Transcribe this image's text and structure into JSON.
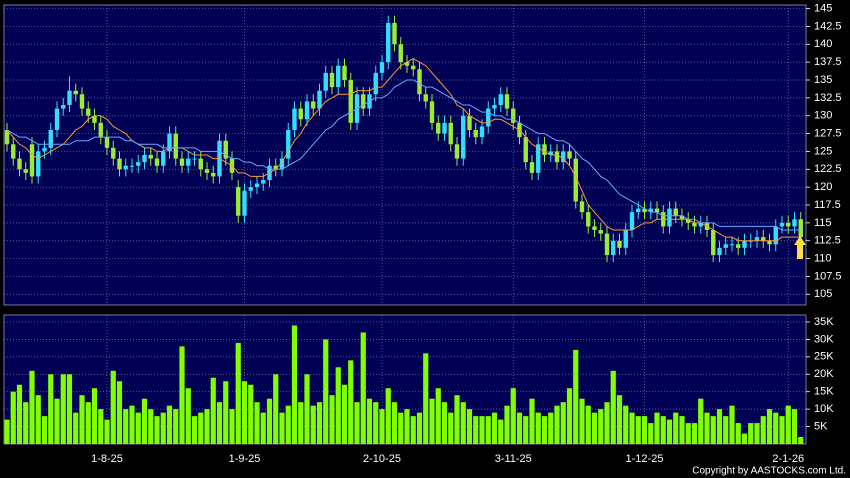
{
  "chart_data": [
    {
      "type": "candlestick",
      "up_color": "#33ddff",
      "down_color": "#99ee33",
      "open": [
        128,
        126,
        124,
        122.5,
        126,
        121.5,
        125,
        125.5,
        128,
        131,
        131.5,
        133.5,
        133,
        131,
        130,
        129,
        127,
        125.5,
        124,
        122.5,
        123,
        123,
        123.5,
        124.5,
        124,
        123,
        125,
        127.5,
        124,
        123,
        124,
        124,
        122.5,
        122,
        121.5,
        126.5,
        124,
        120,
        116,
        119.5,
        120,
        120.5,
        121,
        123,
        122.5,
        124,
        128,
        131,
        129.5,
        132,
        131,
        133.5,
        136,
        134,
        137,
        135,
        129,
        133,
        131,
        133,
        136,
        137.5,
        143,
        140,
        137.5,
        137,
        136.5,
        133,
        132,
        129,
        127.5,
        129,
        126,
        124,
        130,
        128,
        127,
        128.5,
        131,
        131.5,
        133,
        131,
        129,
        127,
        123.5,
        122,
        126,
        124.5,
        125,
        123.5,
        125,
        124,
        118,
        116.5,
        114.5,
        114,
        113.5,
        110.5,
        112.5,
        111.5,
        114,
        116.5,
        117,
        116.5,
        117,
        116.5,
        114.5,
        117,
        116,
        115.5,
        115,
        114.5,
        115,
        114,
        110.5,
        111.5,
        112,
        112,
        111.5,
        112.5,
        112.5,
        113,
        112.5,
        112,
        114.5,
        115,
        114.5,
        115.5
      ],
      "high": [
        129,
        127,
        125,
        123.5,
        127,
        126,
        126.5,
        129,
        132,
        132.5,
        135.5,
        134.5,
        134,
        132,
        131,
        130,
        128,
        126.5,
        125,
        124,
        124,
        124.5,
        125.5,
        125.5,
        125,
        126,
        128.5,
        128.5,
        125,
        125,
        125,
        125,
        123.5,
        123,
        127.5,
        127.5,
        125,
        121,
        120.5,
        121,
        121.5,
        122,
        124,
        124,
        125,
        129,
        132,
        132,
        133,
        133,
        134.5,
        137,
        137,
        138,
        138,
        136,
        134,
        134,
        134,
        137,
        138.5,
        144,
        144,
        141,
        138.5,
        138,
        137.5,
        134,
        133,
        130,
        130,
        130,
        127,
        131,
        131,
        129,
        129.5,
        132,
        132.5,
        134,
        134,
        132,
        130,
        128,
        124.5,
        127,
        127,
        126,
        126,
        126,
        126,
        125,
        119,
        117.5,
        115.5,
        115,
        114.5,
        113.5,
        113.5,
        115,
        117.5,
        118,
        118,
        118,
        118,
        117.5,
        118,
        118,
        117,
        116.5,
        116,
        116,
        116,
        115,
        112.5,
        113,
        113,
        113,
        113.5,
        113.5,
        114,
        114,
        113.5,
        115.5,
        116,
        116,
        116.5,
        116.5
      ],
      "low": [
        125,
        123,
        121.5,
        121,
        120.5,
        120.5,
        124,
        124.5,
        127,
        130,
        130.5,
        132,
        130,
        129,
        128,
        126,
        124.5,
        123,
        121.5,
        121.5,
        122,
        122,
        122.5,
        123,
        122,
        122,
        124,
        123,
        122,
        122,
        123,
        121.5,
        121,
        120.5,
        120.5,
        123,
        121,
        115,
        115,
        118.5,
        119,
        119.5,
        120,
        121.5,
        121.5,
        123,
        127,
        128.5,
        128.5,
        130,
        130,
        132.5,
        133,
        133,
        134,
        128,
        128,
        130,
        130,
        132,
        135,
        136.5,
        139,
        136.5,
        136,
        135.5,
        132,
        131,
        128,
        126.5,
        126.5,
        125,
        123,
        123,
        127,
        126,
        126,
        127.5,
        130,
        130.5,
        130,
        128,
        126,
        122.5,
        121,
        121,
        123.5,
        123.5,
        122.5,
        122.5,
        123,
        117,
        115.5,
        113.5,
        113,
        112.5,
        109.5,
        109.5,
        110.5,
        110.5,
        113,
        115.5,
        115.5,
        115.5,
        115.5,
        113.5,
        113.5,
        115,
        114.5,
        114,
        113.5,
        113.5,
        113,
        109.5,
        109.5,
        110.5,
        111,
        110.5,
        110.5,
        111.5,
        111.5,
        111.5,
        111,
        111,
        113.5,
        113.5,
        113.5,
        112
      ],
      "close": [
        126,
        124,
        122.5,
        122,
        121.5,
        125,
        125.5,
        128,
        131,
        131.5,
        133.5,
        133,
        131,
        130,
        129,
        127,
        125.5,
        124,
        122.5,
        123,
        123,
        123.5,
        124.5,
        124,
        123,
        125,
        127.5,
        124,
        123,
        124,
        124,
        122.5,
        122,
        121.5,
        126.5,
        124,
        122,
        116,
        119.5,
        120,
        120.5,
        121,
        123,
        122.5,
        124,
        128,
        131,
        129.5,
        132,
        131,
        133.5,
        136,
        134,
        137,
        135,
        129,
        133,
        131,
        133,
        136,
        137.5,
        143,
        140,
        137.5,
        137,
        136.5,
        133,
        132,
        129,
        127.5,
        129,
        126,
        124,
        130,
        128,
        127,
        128.5,
        131,
        131.5,
        133,
        131,
        129,
        127,
        123.5,
        122,
        126,
        124.5,
        125,
        123.5,
        125,
        124,
        118,
        116.5,
        114.5,
        114,
        113.5,
        110.5,
        112.5,
        111.5,
        114,
        116.5,
        117,
        116.5,
        117,
        116.5,
        114.5,
        117,
        116,
        115.5,
        115,
        114.5,
        115,
        114,
        110.5,
        111.5,
        112,
        112,
        111.5,
        112.5,
        112.5,
        113,
        112.5,
        112,
        114.5,
        115,
        114.5,
        115.5,
        113
      ],
      "series": [
        {
          "color": "#ff9933",
          "values": [
            128,
            127,
            126,
            125.5,
            124.5,
            124,
            124.5,
            125,
            125.5,
            126,
            127,
            128,
            128.5,
            129.5,
            130,
            130,
            129.5,
            128.5,
            128,
            127.5,
            126.5,
            126,
            125.5,
            125.5,
            125,
            125,
            125.5,
            125.5,
            125.5,
            125,
            124.5,
            124.5,
            124.5,
            124,
            124,
            123.5,
            123,
            122,
            122,
            121.5,
            121.5,
            121.5,
            122,
            122.5,
            123.5,
            125,
            126.5,
            127.5,
            129,
            130,
            131,
            132,
            132.5,
            133,
            133,
            133,
            133.5,
            133.5,
            133.5,
            134,
            134,
            135,
            136,
            137,
            137.5,
            138,
            137.5,
            137,
            136,
            135,
            134,
            133,
            131.5,
            131,
            130,
            129.5,
            129,
            129,
            129.5,
            129.5,
            129,
            128.5,
            128,
            127,
            126,
            125.5,
            125,
            124.5,
            124.5,
            124,
            123,
            121.5,
            119.5,
            117.5,
            116.5,
            115.5,
            114.5,
            114,
            114,
            114,
            114,
            114.5,
            115,
            115,
            115.5,
            115.5,
            115.5,
            115.5,
            115.5,
            115.5,
            115,
            115,
            114.5,
            114,
            113.5,
            113,
            113,
            112.5,
            112.5,
            112.5,
            112.5,
            112.5,
            112.5,
            112.5,
            113,
            113,
            113,
            113
          ]
        },
        {
          "color": "#66aaff",
          "values": [
            128,
            127.5,
            127,
            127,
            126.5,
            126,
            126,
            126,
            126,
            126,
            126,
            126.5,
            126.5,
            126.5,
            127,
            127,
            127,
            127,
            127,
            126.5,
            126.5,
            126,
            126,
            126,
            126,
            125.5,
            125.5,
            125.5,
            125.5,
            125.5,
            125.5,
            125,
            125,
            125,
            125,
            124.5,
            124,
            124,
            123.5,
            123.5,
            123,
            123,
            122.5,
            122.5,
            122.5,
            123,
            123.5,
            124,
            125,
            126,
            127,
            128,
            128.5,
            129.5,
            130,
            130.5,
            131,
            131.5,
            132,
            132.5,
            132.5,
            133,
            134,
            134.5,
            135,
            135,
            134.5,
            134,
            134,
            133.5,
            133,
            132.5,
            132,
            131.5,
            131.5,
            131,
            130.5,
            130.5,
            130,
            130,
            129.5,
            129.5,
            129,
            128.5,
            128,
            127.5,
            127.5,
            127,
            126.5,
            126.5,
            126,
            125,
            124,
            123.5,
            122.5,
            121.5,
            121,
            120,
            119,
            118.5,
            118,
            117.5,
            117,
            116.5,
            116.5,
            116,
            116,
            116,
            116,
            115.5,
            115.5,
            115,
            115,
            115,
            114.5,
            114.5,
            114.5,
            114.5,
            114.5,
            114.5,
            114.5,
            114.5,
            114.5,
            114.5,
            114,
            114,
            114,
            114
          ]
        }
      ],
      "ylim": [
        103.5,
        145.5
      ],
      "yticks": [
        105,
        107.5,
        110,
        112.5,
        115,
        117.5,
        120,
        122.5,
        125,
        127.5,
        130,
        132.5,
        135,
        137.5,
        140,
        142.5,
        145
      ],
      "grid": true
    },
    {
      "type": "bar",
      "color": "#80ff00",
      "categories": [
        null,
        null,
        null,
        null,
        null,
        null,
        null,
        null,
        null,
        null,
        null,
        null,
        null,
        null,
        null,
        null,
        "1-8-25",
        null,
        null,
        null,
        null,
        null,
        null,
        null,
        null,
        null,
        null,
        null,
        null,
        null,
        null,
        null,
        null,
        null,
        null,
        null,
        null,
        null,
        "1-9-25",
        null,
        null,
        null,
        null,
        null,
        null,
        null,
        null,
        null,
        null,
        null,
        null,
        null,
        null,
        null,
        null,
        null,
        null,
        null,
        null,
        null,
        "2-10-25",
        null,
        null,
        null,
        null,
        null,
        null,
        null,
        null,
        null,
        null,
        null,
        null,
        null,
        null,
        null,
        null,
        null,
        null,
        null,
        null,
        "3-11-25",
        null,
        null,
        null,
        null,
        null,
        null,
        null,
        null,
        null,
        null,
        null,
        null,
        null,
        null,
        null,
        null,
        null,
        null,
        null,
        null,
        "1-12-25",
        null,
        null,
        null,
        null,
        null,
        null,
        null,
        null,
        null,
        null,
        null,
        null,
        null,
        null,
        null,
        null,
        null,
        null,
        null,
        null,
        null,
        null,
        "2-1-26",
        null,
        null
      ],
      "values": [
        7000,
        15000,
        17000,
        12000,
        21000,
        14000,
        8000,
        20000,
        13000,
        20000,
        20000,
        9000,
        14000,
        12000,
        16000,
        10000,
        7000,
        21000,
        18000,
        10000,
        11000,
        9000,
        13000,
        10000,
        8000,
        9000,
        11000,
        10000,
        28000,
        16000,
        8000,
        9000,
        10000,
        19000,
        12000,
        18000,
        10000,
        29000,
        18000,
        17000,
        12000,
        9000,
        13000,
        20000,
        9000,
        11000,
        34000,
        12000,
        20000,
        11000,
        12000,
        30000,
        14000,
        22000,
        17000,
        24000,
        12000,
        32000,
        13000,
        12000,
        10000,
        16000,
        12000,
        9000,
        10000,
        8000,
        9000,
        26000,
        13000,
        16000,
        12000,
        9000,
        14000,
        12000,
        10000,
        8000,
        8000,
        8000,
        9000,
        7000,
        11000,
        16000,
        9000,
        8000,
        13000,
        9000,
        8000,
        9000,
        11000,
        12000,
        16000,
        27000,
        13000,
        11000,
        9000,
        10000,
        12000,
        21000,
        14000,
        11000,
        9000,
        8000,
        8000,
        6000,
        9000,
        8000,
        7000,
        9000,
        8000,
        6000,
        6000,
        13000,
        9000,
        8000,
        10000,
        8000,
        11000,
        6000,
        3000,
        6000,
        6000,
        8000,
        10000,
        9000,
        8000,
        11000,
        10000,
        2000
      ],
      "ylim": [
        0,
        37000
      ],
      "yticks": [
        {
          "value": 5000,
          "label": "5K"
        },
        {
          "value": 10000,
          "label": "10K"
        },
        {
          "value": 15000,
          "label": "15K"
        },
        {
          "value": 20000,
          "label": "20K"
        },
        {
          "value": 25000,
          "label": "25K"
        },
        {
          "value": 30000,
          "label": "30K"
        },
        {
          "value": 35000,
          "label": "35K"
        }
      ],
      "grid": true,
      "annotations": [
        "Copyright by AASTOCKS.com Ltd."
      ]
    }
  ]
}
